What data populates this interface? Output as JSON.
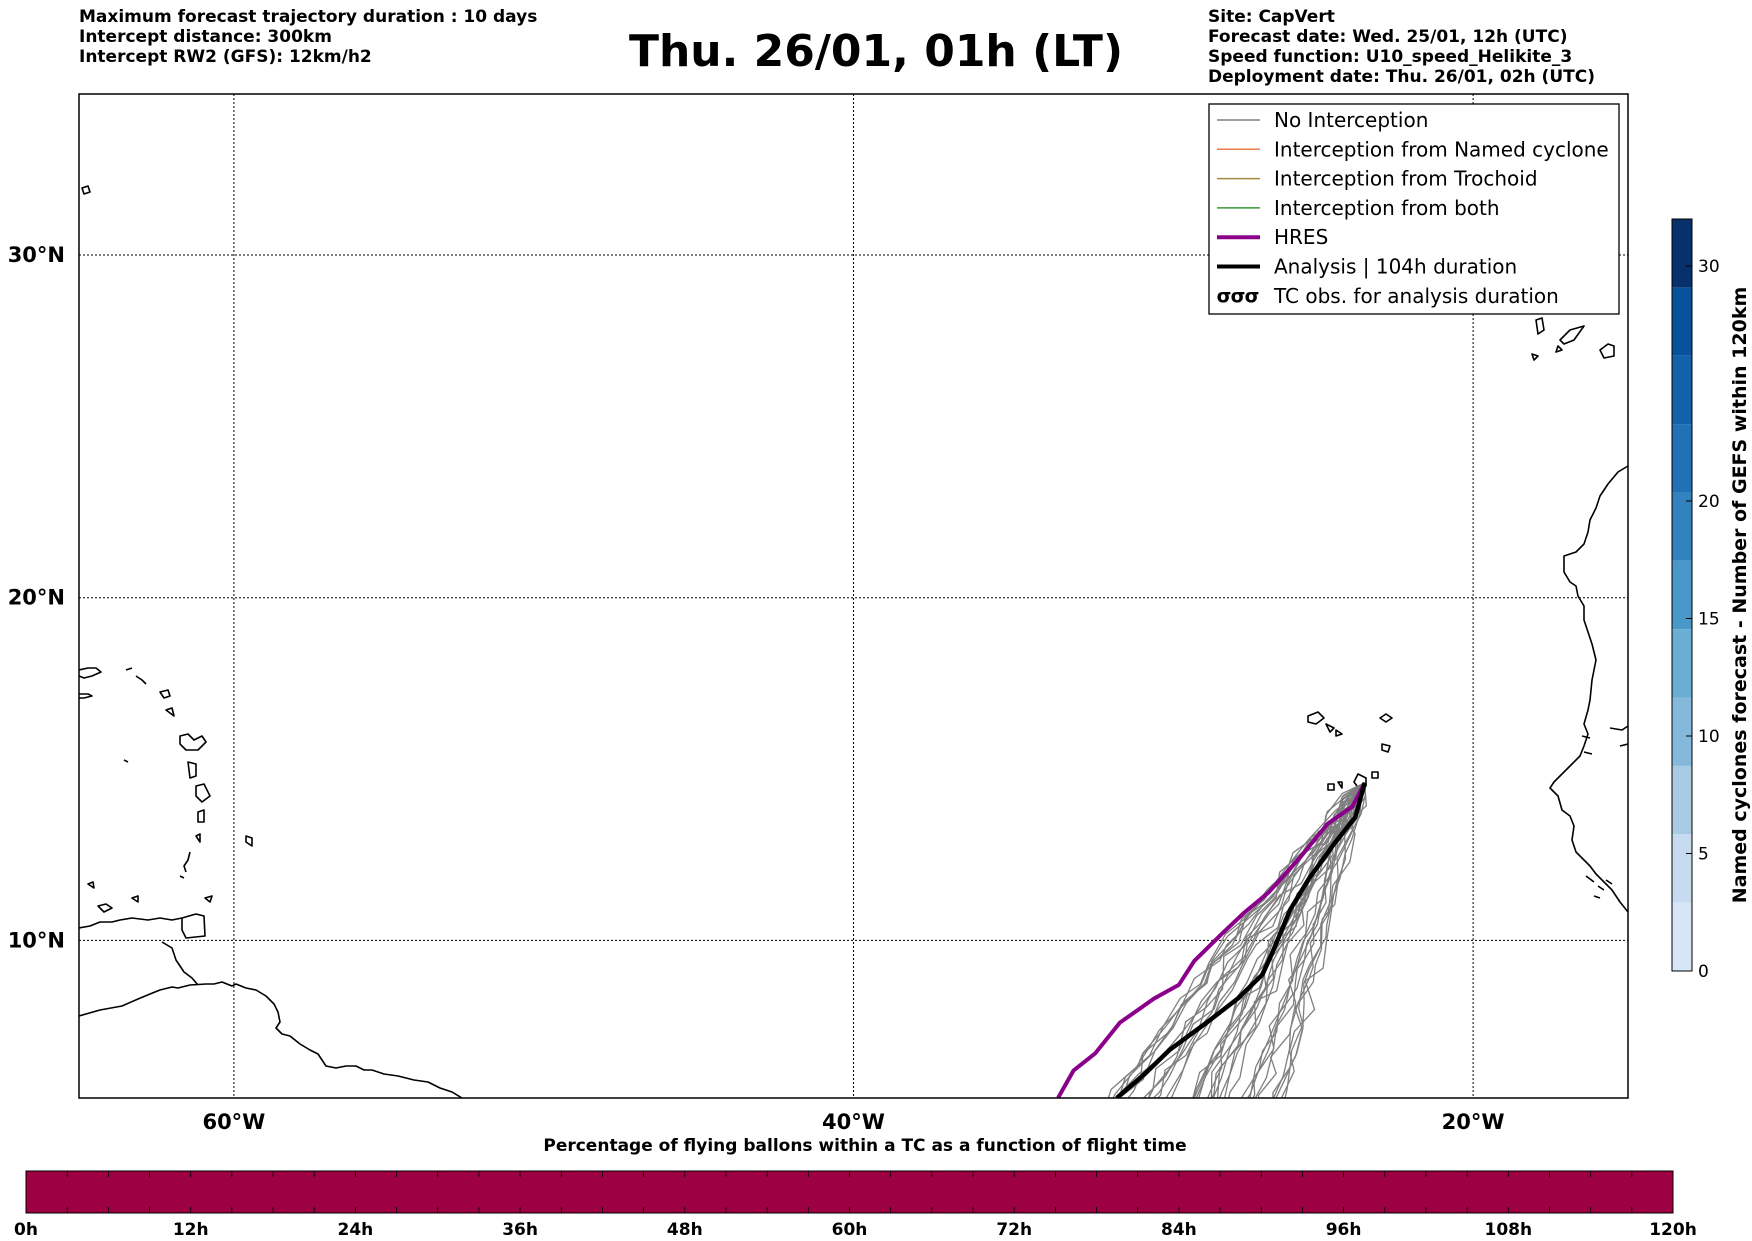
{
  "header": {
    "left_lines": [
      "Maximum forecast trajectory duration : 10 days",
      "Intercept distance: 300km",
      "Intercept RW2 (GFS):  12km/h2"
    ],
    "title": "Thu. 26/01, 01h (LT)",
    "right_lines": [
      "Site: CapVert",
      "Forecast date: Wed. 25/01, 12h (UTC)",
      "Speed function: U10_speed_Helikite_3",
      "Deployment date: Thu. 26/01, 02h (UTC)"
    ]
  },
  "map": {
    "lat_labels": [
      "30°N",
      "20°N",
      "10°N"
    ],
    "lon_labels": [
      "60°W",
      "40°W",
      "20°W"
    ],
    "lat_values": [
      30,
      20,
      10
    ],
    "lon_values": [
      -60,
      -40,
      -20
    ],
    "extent": {
      "lon_min": -65,
      "lon_max": -15,
      "lat_min": 5.4,
      "lat_max": 34.7
    },
    "grid": "dotted",
    "deployment_site": {
      "lon": -23.5,
      "lat": 14.6
    },
    "analysis_track": [
      [
        -23.5,
        14.6
      ],
      [
        -23.8,
        13.6
      ],
      [
        -24.5,
        12.8
      ],
      [
        -25.3,
        11.8
      ],
      [
        -25.9,
        10.9
      ],
      [
        -26.5,
        9.6
      ],
      [
        -26.8,
        9.0
      ],
      [
        -27.6,
        8.3
      ],
      [
        -28.6,
        7.6
      ],
      [
        -29.8,
        6.8
      ],
      [
        -30.6,
        6.1
      ],
      [
        -31.5,
        5.4
      ]
    ],
    "hres_track": [
      [
        -23.5,
        14.6
      ],
      [
        -23.9,
        13.9
      ],
      [
        -24.7,
        13.4
      ],
      [
        -25.6,
        12.4
      ],
      [
        -26.6,
        11.4
      ],
      [
        -27.4,
        10.8
      ],
      [
        -28.1,
        10.2
      ],
      [
        -29.0,
        9.4
      ],
      [
        -29.5,
        8.7
      ],
      [
        -30.3,
        8.3
      ],
      [
        -31.4,
        7.6
      ],
      [
        -32.2,
        6.7
      ],
      [
        -32.9,
        6.2
      ],
      [
        -33.4,
        5.4
      ]
    ]
  },
  "legend": {
    "items": [
      {
        "label": "No Interception",
        "color": "#7f7f7f",
        "style": "thin"
      },
      {
        "label": "Interception from Named cyclone",
        "color": "#f07a4a",
        "style": "thin"
      },
      {
        "label": "Interception from Trochoid",
        "color": "#a08a40",
        "style": "thin"
      },
      {
        "label": "Interception from both",
        "color": "#3a9a3a",
        "style": "thin"
      },
      {
        "label": "HRES",
        "color": "#8b008b",
        "style": "thick"
      },
      {
        "label": "Analysis | 104h duration",
        "color": "#000000",
        "style": "thick"
      },
      {
        "label": "TC obs. for analysis duration",
        "color": "#000000",
        "style": "symbol"
      }
    ]
  },
  "colorbar_right": {
    "label": "Named cyclones forecast - Number of GEFS within 120km",
    "ticks": [
      "0",
      "5",
      "10",
      "15",
      "20",
      "30"
    ],
    "tick_values": [
      0,
      5,
      10,
      15,
      20,
      30
    ],
    "max": 32,
    "colors": [
      "#d7e6f5",
      "#c6dbef",
      "#a8cbe3",
      "#86b8dc",
      "#6aaed6",
      "#4a98c9",
      "#3282bd",
      "#2171b5",
      "#1361a9",
      "#08519c",
      "#08306b"
    ]
  },
  "colorbar_bottom": {
    "title": "Percentage of flying ballons within a TC as a function of flight time",
    "ticks": [
      "0h",
      "12h",
      "24h",
      "36h",
      "48h",
      "60h",
      "72h",
      "84h",
      "96h",
      "108h",
      "120h"
    ],
    "fill_color": "#9e0142"
  }
}
